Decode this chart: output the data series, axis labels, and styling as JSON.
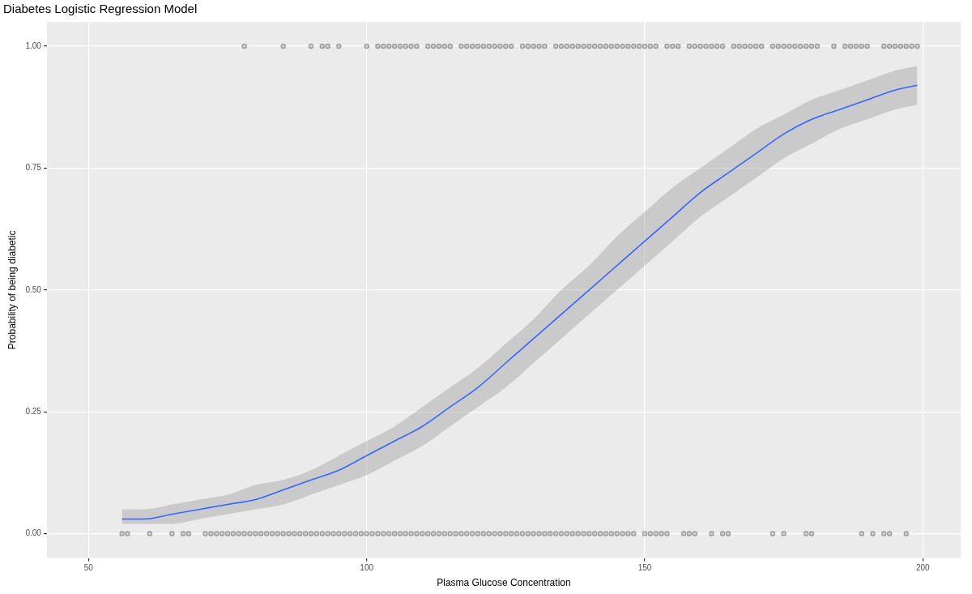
{
  "chart_data": {
    "type": "scatter",
    "title": "Diabetes Logistic Regression Model",
    "xlabel": "Plasma Glucose Concentration",
    "ylabel": "Probability of being diabetic",
    "xlim": [
      42.5,
      206.8
    ],
    "ylim": [
      -0.05,
      1.05
    ],
    "xticks": [
      50,
      100,
      150,
      200
    ],
    "yticks": [
      {
        "value": 0,
        "label": "0.00"
      },
      {
        "value": 0.25,
        "label": "0.25"
      },
      {
        "value": 0.5,
        "label": "0.50"
      },
      {
        "value": 0.75,
        "label": "0.75"
      },
      {
        "value": 1,
        "label": "1.00"
      }
    ],
    "grid": true,
    "legend": false,
    "series": [
      {
        "marker": "circle",
        "color": "#5a5a5a",
        "x": [
          78,
          85,
          90,
          92,
          93,
          95,
          100,
          102,
          103,
          104,
          105,
          106,
          107,
          108,
          109,
          111,
          112,
          113,
          114,
          115,
          117,
          118,
          119,
          120,
          121,
          122,
          123,
          124,
          125,
          126,
          128,
          129,
          130,
          131,
          132,
          134,
          135,
          136,
          137,
          138,
          139,
          140,
          141,
          142,
          143,
          144,
          145,
          146,
          147,
          148,
          149,
          150,
          151,
          152,
          154,
          155,
          156,
          158,
          159,
          160,
          161,
          162,
          163,
          164,
          166,
          167,
          168,
          169,
          170,
          171,
          173,
          174,
          175,
          176,
          177,
          178,
          179,
          180,
          181,
          184,
          186,
          187,
          188,
          189,
          190,
          193,
          194,
          195,
          196,
          197,
          198,
          199
        ],
        "values": [
          1,
          1,
          1,
          1,
          1,
          1,
          1,
          1,
          1,
          1,
          1,
          1,
          1,
          1,
          1,
          1,
          1,
          1,
          1,
          1,
          1,
          1,
          1,
          1,
          1,
          1,
          1,
          1,
          1,
          1,
          1,
          1,
          1,
          1,
          1,
          1,
          1,
          1,
          1,
          1,
          1,
          1,
          1,
          1,
          1,
          1,
          1,
          1,
          1,
          1,
          1,
          1,
          1,
          1,
          1,
          1,
          1,
          1,
          1,
          1,
          1,
          1,
          1,
          1,
          1,
          1,
          1,
          1,
          1,
          1,
          1,
          1,
          1,
          1,
          1,
          1,
          1,
          1,
          1,
          1,
          1,
          1,
          1,
          1,
          1,
          1,
          1,
          1,
          1,
          1,
          1,
          1
        ]
      },
      {
        "marker": "circle",
        "color": "#5a5a5a",
        "x": [
          56,
          57,
          61,
          65,
          67,
          68,
          71,
          72,
          73,
          74,
          75,
          76,
          77,
          78,
          79,
          80,
          81,
          82,
          83,
          84,
          85,
          86,
          87,
          88,
          89,
          90,
          91,
          92,
          93,
          94,
          95,
          96,
          97,
          98,
          99,
          100,
          101,
          102,
          103,
          104,
          105,
          106,
          107,
          108,
          109,
          110,
          111,
          112,
          113,
          114,
          115,
          116,
          117,
          118,
          119,
          120,
          121,
          122,
          123,
          124,
          125,
          126,
          127,
          128,
          129,
          130,
          131,
          132,
          133,
          134,
          135,
          136,
          137,
          138,
          139,
          140,
          141,
          142,
          143,
          144,
          145,
          146,
          147,
          148,
          150,
          151,
          152,
          153,
          154,
          157,
          158,
          159,
          162,
          164,
          165,
          173,
          175,
          179,
          180,
          189,
          191,
          193,
          194,
          197
        ],
        "values": [
          0,
          0,
          0,
          0,
          0,
          0,
          0,
          0,
          0,
          0,
          0,
          0,
          0,
          0,
          0,
          0,
          0,
          0,
          0,
          0,
          0,
          0,
          0,
          0,
          0,
          0,
          0,
          0,
          0,
          0,
          0,
          0,
          0,
          0,
          0,
          0,
          0,
          0,
          0,
          0,
          0,
          0,
          0,
          0,
          0,
          0,
          0,
          0,
          0,
          0,
          0,
          0,
          0,
          0,
          0,
          0,
          0,
          0,
          0,
          0,
          0,
          0,
          0,
          0,
          0,
          0,
          0,
          0,
          0,
          0,
          0,
          0,
          0,
          0,
          0,
          0,
          0,
          0,
          0,
          0,
          0,
          0,
          0,
          0,
          0,
          0,
          0,
          0,
          0,
          0,
          0,
          0,
          0,
          0,
          0,
          0,
          0,
          0,
          0,
          0,
          0,
          0,
          0,
          0
        ]
      },
      {
        "type": "line",
        "color": "#3366ff",
        "line_style": "solid",
        "x": [
          56,
          60,
          65,
          70,
          75,
          80,
          85,
          90,
          95,
          100,
          105,
          110,
          115,
          120,
          125,
          130,
          135,
          140,
          145,
          150,
          155,
          160,
          165,
          170,
          175,
          180,
          185,
          190,
          195,
          199
        ],
        "values": [
          0.03,
          0.03,
          0.04,
          0.05,
          0.06,
          0.07,
          0.09,
          0.11,
          0.13,
          0.16,
          0.19,
          0.22,
          0.26,
          0.3,
          0.35,
          0.4,
          0.45,
          0.5,
          0.55,
          0.6,
          0.65,
          0.7,
          0.74,
          0.78,
          0.82,
          0.85,
          0.87,
          0.89,
          0.91,
          0.92
        ],
        "lower": [
          0.02,
          0.02,
          0.02,
          0.03,
          0.04,
          0.05,
          0.06,
          0.08,
          0.1,
          0.12,
          0.15,
          0.18,
          0.22,
          0.26,
          0.3,
          0.35,
          0.4,
          0.45,
          0.5,
          0.55,
          0.6,
          0.65,
          0.69,
          0.73,
          0.77,
          0.8,
          0.83,
          0.85,
          0.87,
          0.88
        ],
        "upper": [
          0.05,
          0.05,
          0.06,
          0.07,
          0.08,
          0.1,
          0.11,
          0.13,
          0.16,
          0.19,
          0.22,
          0.26,
          0.3,
          0.34,
          0.39,
          0.44,
          0.5,
          0.55,
          0.61,
          0.66,
          0.71,
          0.75,
          0.79,
          0.83,
          0.86,
          0.89,
          0.91,
          0.93,
          0.95,
          0.96
        ]
      }
    ]
  }
}
